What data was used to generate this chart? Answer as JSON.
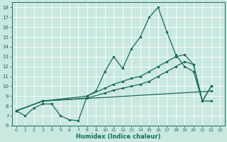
{
  "bg_color": "#c8e8e0",
  "line_color": "#1a6b5a",
  "grid_color": "#b8d8d0",
  "xlim": [
    -0.5,
    23.5
  ],
  "ylim": [
    6.0,
    18.5
  ],
  "yticks": [
    6,
    7,
    8,
    9,
    10,
    11,
    12,
    13,
    14,
    15,
    16,
    17,
    18
  ],
  "xticks": [
    0,
    1,
    2,
    3,
    4,
    5,
    6,
    7,
    8,
    9,
    10,
    11,
    12,
    13,
    14,
    15,
    16,
    17,
    18,
    19,
    20,
    21,
    22,
    23
  ],
  "xlabel": "Humidex (Indice chaleur)",
  "line1_x": [
    0,
    1,
    2,
    3,
    4,
    5,
    6,
    7,
    8,
    9,
    10,
    11,
    12,
    13,
    14,
    15,
    16,
    17,
    18,
    19,
    20,
    21,
    22
  ],
  "line1_y": [
    7.5,
    7.0,
    7.8,
    8.2,
    8.2,
    7.0,
    6.6,
    6.5,
    9.0,
    9.5,
    11.5,
    13.0,
    11.8,
    13.8,
    15.0,
    17.0,
    18.0,
    15.5,
    13.2,
    12.0,
    11.5,
    8.5,
    8.5
  ],
  "line2_x": [
    0,
    3,
    8,
    10,
    11,
    12,
    13,
    14,
    15,
    16,
    17,
    18,
    19,
    20,
    21,
    22
  ],
  "line2_y": [
    7.5,
    8.5,
    9.0,
    9.8,
    10.2,
    10.5,
    10.8,
    11.0,
    11.5,
    12.0,
    12.5,
    13.0,
    13.2,
    12.2,
    8.5,
    10.0
  ],
  "line3_x": [
    0,
    3,
    8,
    10,
    11,
    12,
    13,
    14,
    15,
    16,
    17,
    18,
    19,
    20,
    21,
    22
  ],
  "line3_y": [
    7.5,
    8.5,
    8.8,
    9.3,
    9.6,
    9.8,
    10.0,
    10.2,
    10.5,
    11.0,
    11.5,
    12.0,
    12.5,
    12.2,
    8.5,
    10.0
  ],
  "line4_x": [
    0,
    3,
    22
  ],
  "line4_y": [
    7.5,
    8.5,
    9.5
  ]
}
